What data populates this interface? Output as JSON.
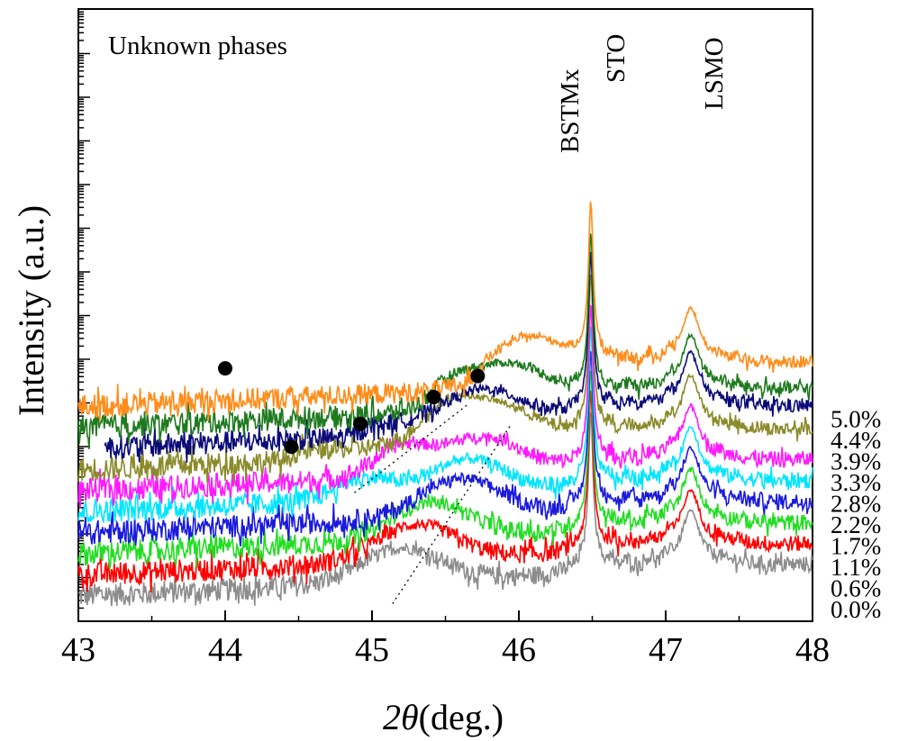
{
  "chart_data": {
    "type": "line",
    "xlabel_symbol": "2θ",
    "xlabel_unit": "(deg.)",
    "ylabel": "Intensity (a.u.)",
    "xlim": [
      43,
      48
    ],
    "x_ticks": [
      "43",
      "44",
      "45",
      "46",
      "47",
      "48"
    ],
    "y_scale": "log",
    "annotations": {
      "unknown_phases": "Unknown phases",
      "bstm": "BSTMx",
      "sto": "STO",
      "lsmo": "LSMO"
    },
    "colors": {
      "0.0%": "#8c8c8c",
      "0.6%": "#ff0000",
      "1.1%": "#22dd22",
      "1.7%": "#1a1adc",
      "2.2%": "#00e5ff",
      "2.8%": "#ff1aff",
      "3.3%": "#8a8a2a",
      "3.9%": "#0a0a78",
      "4.4%": "#1e7a1e",
      "5.0%": "#ff8c1a"
    },
    "series": [
      {
        "name": "0.0%",
        "start": 43.0,
        "base": 0.0,
        "film": [
          45.2,
          0.9,
          0.1
        ],
        "film2": null,
        "extra": null
      },
      {
        "name": "0.6%",
        "start": 43.0,
        "base": 0.55,
        "film": [
          45.3,
          0.95,
          0.1
        ],
        "film2": null,
        "extra": null
      },
      {
        "name": "1.1%",
        "start": 43.0,
        "base": 1.1,
        "film": [
          45.4,
          0.95,
          0.1
        ],
        "film2": null,
        "extra": null
      },
      {
        "name": "1.7%",
        "start": 43.0,
        "base": 1.65,
        "film": [
          45.6,
          1.0,
          0.1
        ],
        "film2": null,
        "extra": null
      },
      {
        "name": "2.2%",
        "start": 43.0,
        "base": 2.2,
        "film": [
          45.65,
          0.95,
          0.09
        ],
        "film2": [
          44.95,
          0.55,
          0.1
        ],
        "extra": null
      },
      {
        "name": "2.8%",
        "start": 43.0,
        "base": 2.75,
        "film": [
          45.75,
          0.95,
          0.09
        ],
        "film2": [
          45.2,
          0.75,
          0.09
        ],
        "extra": null
      },
      {
        "name": "3.3%",
        "start": 43.0,
        "base": 3.3,
        "film": [
          45.85,
          0.95,
          0.09
        ],
        "film2": [
          45.5,
          0.75,
          0.08
        ],
        "extra": [
          44.45,
          0.25
        ]
      },
      {
        "name": "3.9%",
        "start": 43.18,
        "base": 3.85,
        "film": [
          45.75,
          0.8,
          0.08
        ],
        "film2": null,
        "extra": [
          44.92,
          0.3
        ]
      },
      {
        "name": "4.4%",
        "start": 43.0,
        "base": 4.4,
        "film": [
          45.95,
          0.95,
          0.06
        ],
        "film2": [
          45.55,
          0.55,
          0.07
        ],
        "extra": [
          45.42,
          0.2
        ]
      },
      {
        "name": "5.0%",
        "start": 43.0,
        "base": 4.95,
        "film": [
          46.07,
          0.95,
          0.06
        ],
        "film2": null,
        "extra": [
          45.72,
          0.35
        ]
      }
    ],
    "markers": [
      {
        "x": 44.0,
        "level": 5.95
      },
      {
        "x": 44.45,
        "level": 3.9
      },
      {
        "x": 44.92,
        "level": 4.5
      },
      {
        "x": 45.42,
        "level": 5.2
      },
      {
        "x": 45.72,
        "level": 5.75
      }
    ]
  }
}
